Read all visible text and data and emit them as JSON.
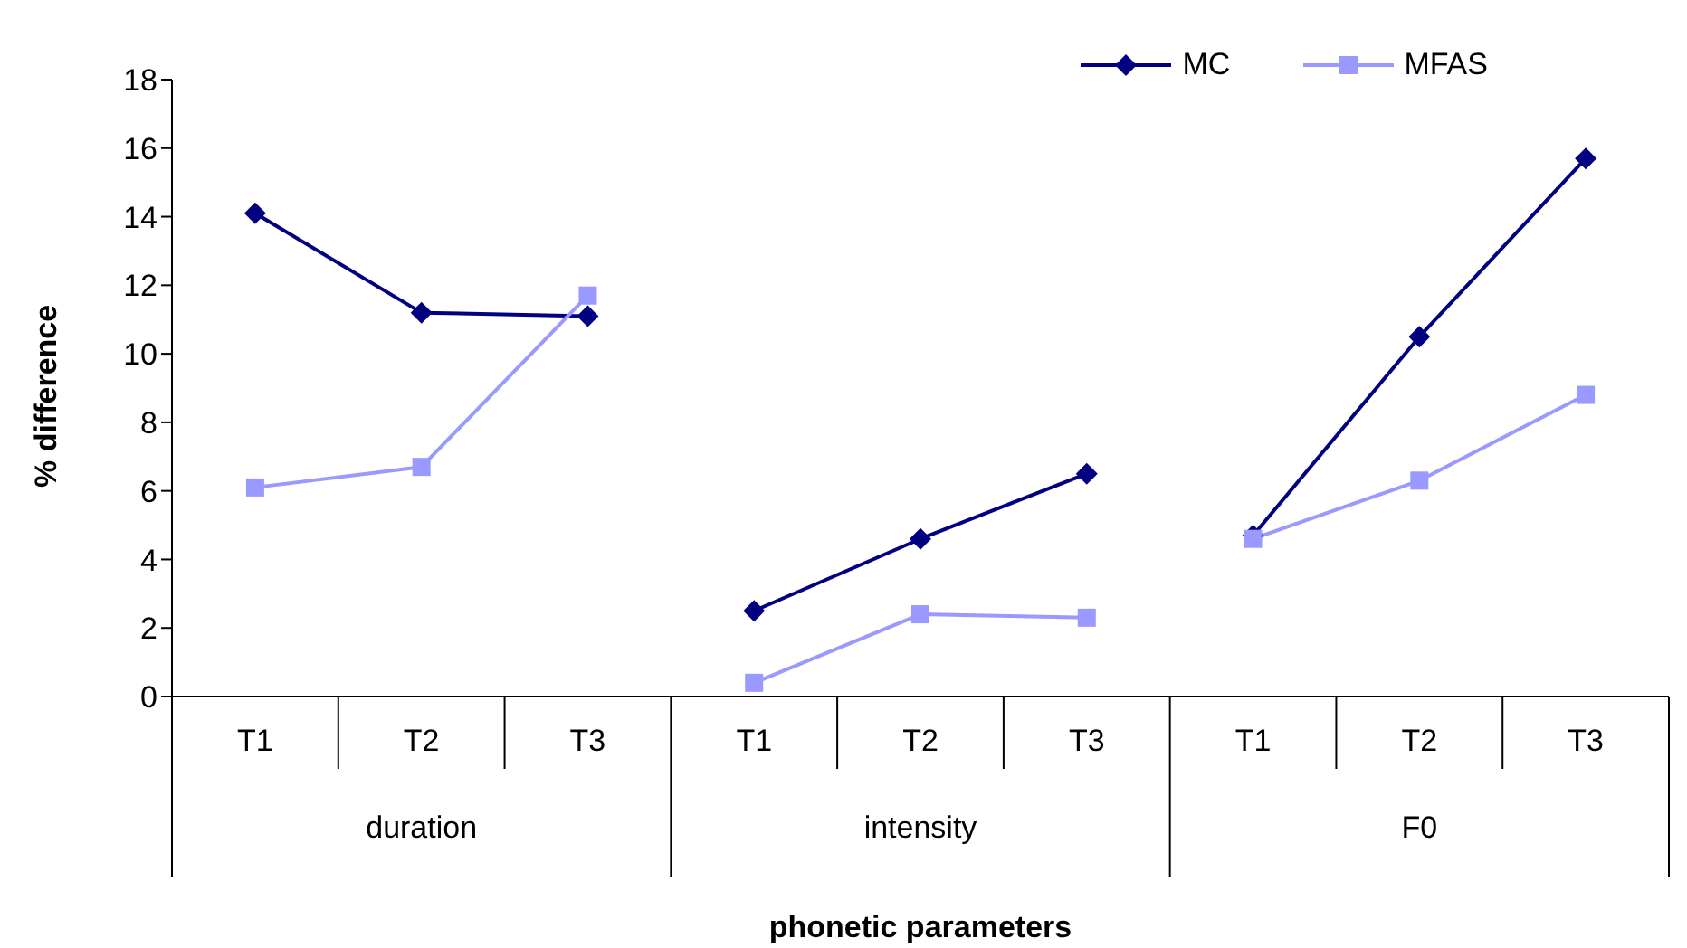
{
  "chart_data": {
    "type": "line",
    "xlabel": "phonetic parameters",
    "ylabel": "% difference",
    "categories": [
      "T1",
      "T2",
      "T3",
      "T1",
      "T2",
      "T3",
      "T1",
      "T2",
      "T3"
    ],
    "annotations": [
      "duration",
      "intensity",
      "F0"
    ],
    "series": [
      {
        "name": "MC",
        "color": "#000080",
        "marker": "diamond",
        "values": [
          14.1,
          11.2,
          11.1,
          2.5,
          4.6,
          6.5,
          4.7,
          10.5,
          15.7
        ]
      },
      {
        "name": "MFAS",
        "color": "#9999ff",
        "marker": "square",
        "values": [
          6.1,
          6.7,
          11.7,
          0.4,
          2.4,
          2.3,
          4.6,
          6.3,
          8.8
        ]
      }
    ],
    "ylim": [
      0,
      18
    ],
    "yticks": [
      0,
      2,
      4,
      6,
      8,
      10,
      12,
      14,
      16,
      18
    ],
    "grid": false,
    "legend": "top right"
  }
}
